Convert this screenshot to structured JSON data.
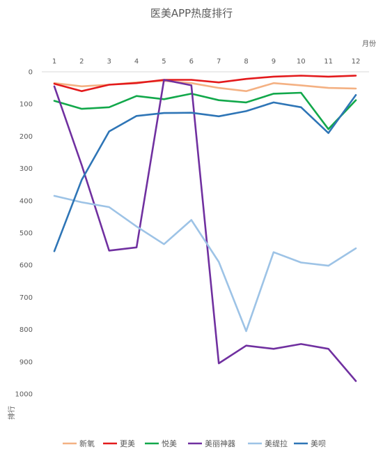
{
  "chart_data": {
    "type": "line",
    "title": "医美APP热度排行",
    "xlabel": "月份",
    "ylabel": "排行",
    "categories": [
      "1",
      "2",
      "3",
      "4",
      "5",
      "6",
      "7",
      "8",
      "9",
      "10",
      "11",
      "12"
    ],
    "y_ticks": [
      "0",
      "100",
      "200",
      "300",
      "400",
      "500",
      "600",
      "700",
      "800",
      "900",
      "1000"
    ],
    "ylim": [
      0,
      1000
    ],
    "y_reversed": true,
    "x_axis_position": "top",
    "grid": false,
    "legend_position": "bottom",
    "series": [
      {
        "name": "新氧",
        "color": "#F4B183",
        "values": [
          35,
          45,
          40,
          33,
          28,
          35,
          50,
          60,
          35,
          42,
          50,
          52
        ]
      },
      {
        "name": "更美",
        "color": "#E31A1C",
        "values": [
          37,
          60,
          40,
          35,
          25,
          25,
          33,
          22,
          15,
          12,
          15,
          12
        ]
      },
      {
        "name": "悦美",
        "color": "#12A84B",
        "values": [
          90,
          115,
          110,
          75,
          85,
          68,
          88,
          95,
          68,
          65,
          178,
          88
        ]
      },
      {
        "name": "美丽神器",
        "color": "#7030A0",
        "values": [
          45,
          290,
          555,
          545,
          25,
          42,
          905,
          850,
          860,
          845,
          860,
          960
        ]
      },
      {
        "name": "美缇拉",
        "color": "#9DC3E6",
        "values": [
          385,
          405,
          420,
          480,
          535,
          460,
          590,
          805,
          560,
          592,
          602,
          548
        ]
      },
      {
        "name": "美呗",
        "color": "#2E75B6",
        "values": [
          557,
          335,
          185,
          137,
          128,
          127,
          138,
          122,
          95,
          110,
          190,
          72
        ]
      }
    ]
  }
}
